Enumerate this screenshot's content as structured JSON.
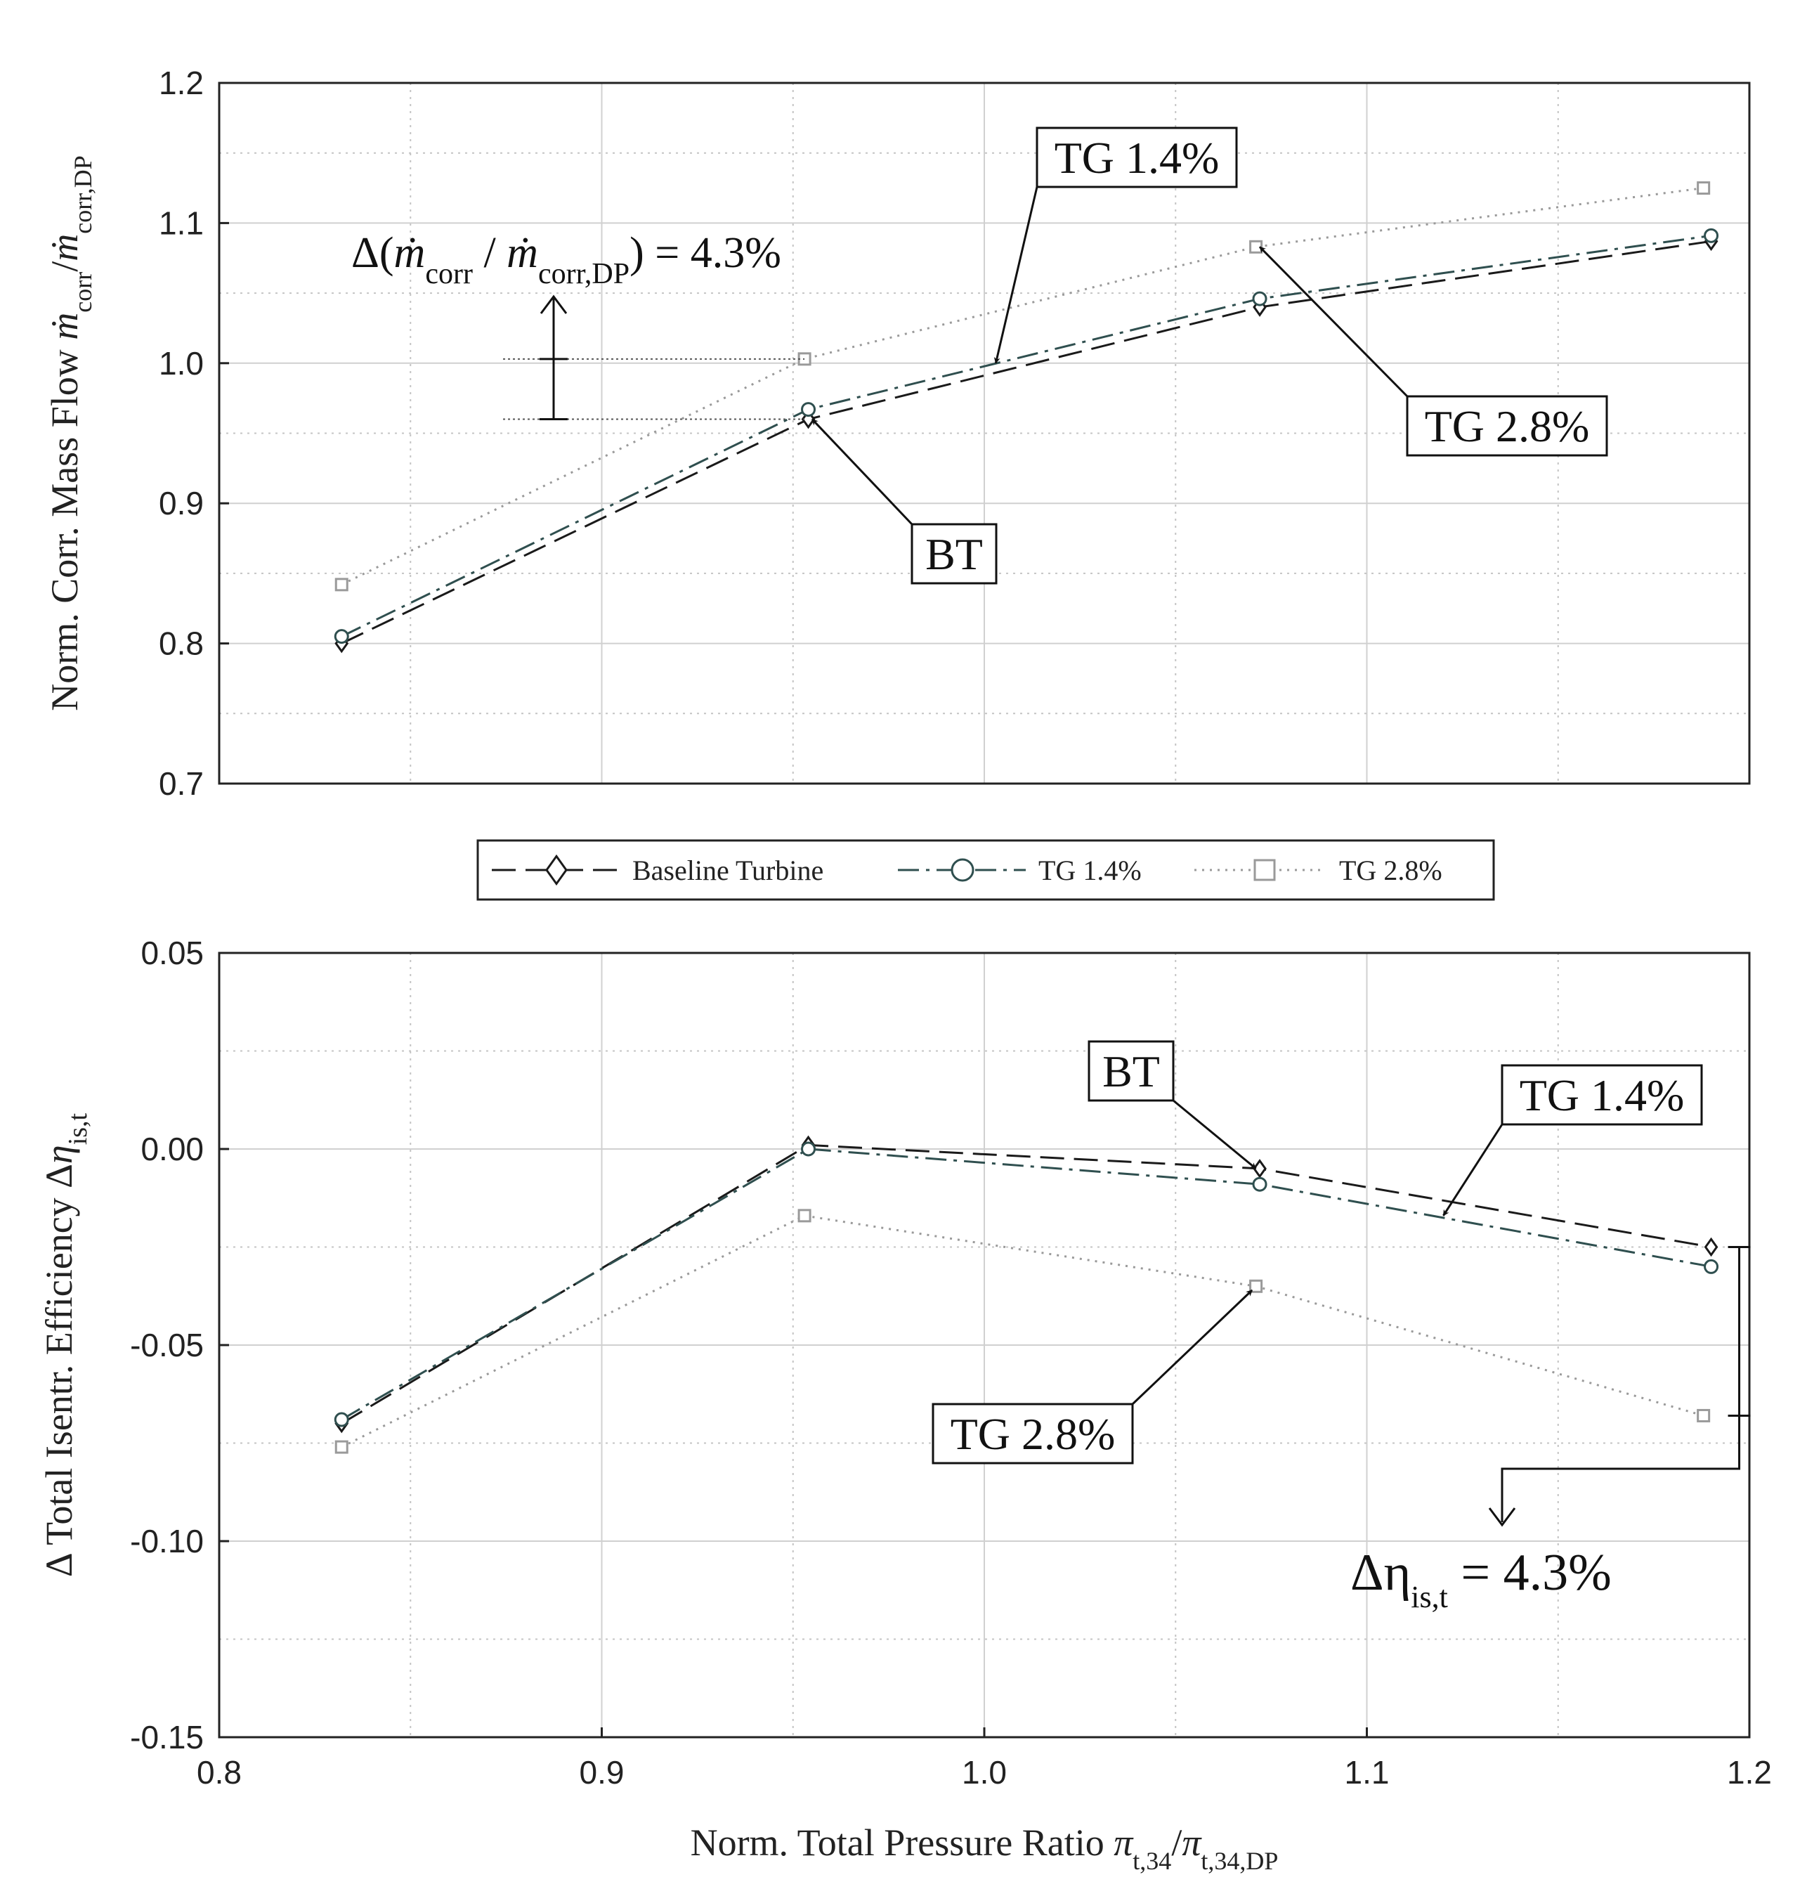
{
  "colors": {
    "baseline": "#1a1a1a",
    "tg14": "#2f4f4f",
    "tg28": "#9a9a9a",
    "grid": "#d0d0d0",
    "axis": "#222222"
  },
  "legend": {
    "entries": [
      {
        "label": "Baseline Turbine",
        "series": "baseline",
        "marker": "diamond",
        "dash": "long-dash"
      },
      {
        "label": "TG 1.4%",
        "series": "tg14",
        "marker": "circle",
        "dash": "dash-dot"
      },
      {
        "label": "TG 2.8%",
        "series": "tg28",
        "marker": "square",
        "dash": "dotted"
      }
    ]
  },
  "chart_data": [
    {
      "type": "line",
      "name": "mass-flow",
      "xlabel": "",
      "ylabel": "Norm. Corr. Mass Flow ṁcorr/ṁcorr,DP",
      "ylabel_main": "Norm. Corr. Mass Flow ",
      "ylabel_sym_a": "ṁ",
      "ylabel_sub_a": "corr",
      "ylabel_slash": "/",
      "ylabel_sym_b": "ṁ",
      "ylabel_sub_b": "corr,DP",
      "xlim": [
        0.8,
        1.2
      ],
      "ylim": [
        0.7,
        1.2
      ],
      "yticks": [
        0.7,
        0.8,
        0.9,
        1.0,
        1.1,
        1.2
      ],
      "ytick_labels": [
        "0.7",
        "0.8",
        "0.9",
        "1.0",
        "1.1",
        "1.2"
      ],
      "xticks": [
        0.8,
        0.9,
        1.0,
        1.1,
        1.2
      ],
      "grid": true,
      "series": [
        {
          "key": "baseline",
          "name": "Baseline Turbine",
          "x": [
            0.832,
            0.954,
            1.072,
            1.19
          ],
          "y": [
            0.8,
            0.96,
            1.04,
            1.087
          ]
        },
        {
          "key": "tg14",
          "name": "TG 1.4%",
          "x": [
            0.832,
            0.954,
            1.072,
            1.19
          ],
          "y": [
            0.805,
            0.967,
            1.046,
            1.091
          ]
        },
        {
          "key": "tg28",
          "name": "TG 2.8%",
          "x": [
            0.832,
            0.953,
            1.071,
            1.188
          ],
          "y": [
            0.842,
            1.003,
            1.083,
            1.125
          ]
        }
      ],
      "annotations": {
        "callouts": [
          {
            "label": "TG 1.4%",
            "target": [
              1.003,
              1.0
            ]
          },
          {
            "label": "TG 2.8%",
            "target": [
              1.072,
              1.083
            ]
          },
          {
            "label": "BT",
            "target": [
              0.955,
              0.96
            ]
          }
        ],
        "delta_label_prefix": "Δ(",
        "delta_label_sym_a": "ṁ",
        "delta_label_sub_a": "corr",
        "delta_label_slash": " / ",
        "delta_label_sym_b": "ṁ",
        "delta_label_sub_b": "corr,DP",
        "delta_label_suffix": ") = 4.3%",
        "delta_range": [
          0.96,
          1.003
        ]
      }
    },
    {
      "type": "line",
      "name": "efficiency",
      "xlabel": "Norm. Total Pressure Ratio πt,34/πt,34,DP",
      "xlabel_main": "Norm. Total Pressure Ratio ",
      "xlabel_sym_a": "π",
      "xlabel_sub_a": "t,34",
      "xlabel_slash": "/",
      "xlabel_sym_b": "π",
      "xlabel_sub_b": "t,34,DP",
      "ylabel": "Δ Total Isentr. Efficiency Δηis,t",
      "ylabel_main": "Δ Total Isentr. Efficiency Δ",
      "ylabel_sym": "η",
      "ylabel_sub": "is,t",
      "xlim": [
        0.8,
        1.2
      ],
      "ylim": [
        -0.15,
        0.05
      ],
      "yticks": [
        -0.15,
        -0.1,
        -0.05,
        0.0,
        0.05
      ],
      "ytick_labels": [
        "-0.15",
        "-0.10",
        "-0.05",
        "0.00",
        "0.05"
      ],
      "xticks": [
        0.8,
        0.9,
        1.0,
        1.1,
        1.2
      ],
      "xtick_labels": [
        "0.8",
        "0.9",
        "1.0",
        "1.1",
        "1.2"
      ],
      "grid": true,
      "series": [
        {
          "key": "baseline",
          "name": "Baseline Turbine",
          "x": [
            0.832,
            0.954,
            1.072,
            1.19
          ],
          "y": [
            -0.07,
            0.001,
            -0.005,
            -0.025
          ]
        },
        {
          "key": "tg14",
          "name": "TG 1.4%",
          "x": [
            0.832,
            0.954,
            1.072,
            1.19
          ],
          "y": [
            -0.069,
            0.0,
            -0.009,
            -0.03
          ]
        },
        {
          "key": "tg28",
          "name": "TG 2.8%",
          "x": [
            0.832,
            0.953,
            1.071,
            1.188
          ],
          "y": [
            -0.076,
            -0.017,
            -0.035,
            -0.068
          ]
        }
      ],
      "annotations": {
        "callouts": [
          {
            "label": "BT",
            "target": [
              1.071,
              -0.005
            ]
          },
          {
            "label": "TG 1.4%",
            "target": [
              1.12,
              -0.017
            ]
          },
          {
            "label": "TG 2.8%",
            "target": [
              1.07,
              -0.036
            ]
          }
        ],
        "delta_label_prefix": "Δη",
        "delta_label_sub": "is,t",
        "delta_label_suffix": " = 4.3%",
        "delta_range": [
          -0.025,
          -0.068
        ]
      }
    }
  ]
}
